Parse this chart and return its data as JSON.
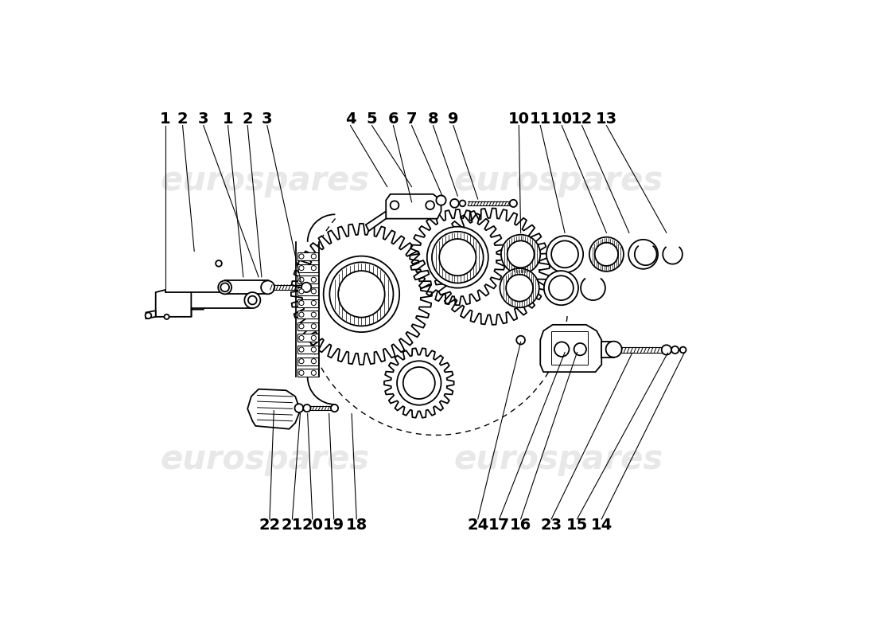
{
  "bg": "#ffffff",
  "lc": "#000000",
  "wm_color": "#cccccc",
  "wm_alpha": 0.45,
  "wm_fs": 30,
  "label_fs": 14,
  "lw": 1.3,
  "top_labels": [
    [
      "1",
      88,
      62
    ],
    [
      "2",
      116,
      62
    ],
    [
      "3",
      150,
      62
    ],
    [
      "1",
      190,
      62
    ],
    [
      "2",
      222,
      62
    ],
    [
      "3",
      254,
      62
    ],
    [
      "4",
      390,
      62
    ],
    [
      "5",
      425,
      62
    ],
    [
      "6",
      460,
      62
    ],
    [
      "7",
      490,
      62
    ],
    [
      "8",
      525,
      62
    ],
    [
      "9",
      558,
      62
    ],
    [
      "10",
      665,
      62
    ],
    [
      "11",
      700,
      62
    ],
    [
      "10",
      735,
      62
    ],
    [
      "12",
      768,
      62
    ],
    [
      "13",
      808,
      62
    ]
  ],
  "bot_labels": [
    [
      "22",
      258,
      738
    ],
    [
      "21",
      295,
      738
    ],
    [
      "20",
      328,
      738
    ],
    [
      "19",
      363,
      738
    ],
    [
      "18",
      400,
      738
    ],
    [
      "24",
      598,
      738
    ],
    [
      "17",
      633,
      738
    ],
    [
      "16",
      668,
      738
    ],
    [
      "23",
      718,
      738
    ],
    [
      "15",
      760,
      738
    ],
    [
      "14",
      800,
      738
    ]
  ]
}
